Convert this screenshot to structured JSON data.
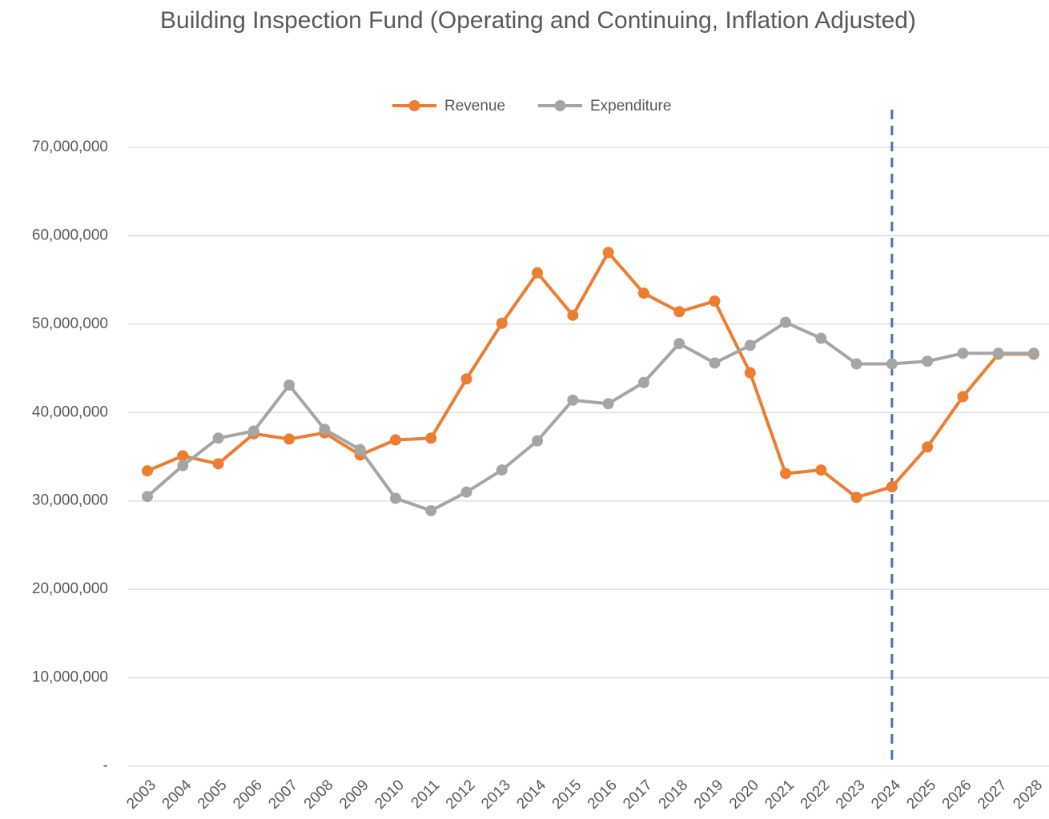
{
  "chart_data": {
    "type": "line",
    "title": "Building Inspection Fund (Operating and Continuing, Inflation Adjusted)",
    "categories": [
      "2003",
      "2004",
      "2005",
      "2006",
      "2007",
      "2008",
      "2009",
      "2010",
      "2011",
      "2012",
      "2013",
      "2014",
      "2015",
      "2016",
      "2017",
      "2018",
      "2019",
      "2020",
      "2021",
      "2022",
      "2023",
      "2024",
      "2025",
      "2026",
      "2027",
      "2028"
    ],
    "series": [
      {
        "name": "Revenue",
        "color": "#ed7d31",
        "values": [
          33400000,
          35100000,
          34200000,
          37600000,
          37000000,
          37700000,
          35200000,
          36900000,
          37100000,
          43800000,
          50100000,
          55800000,
          51000000,
          58100000,
          53500000,
          51400000,
          52600000,
          44500000,
          33100000,
          33500000,
          30400000,
          31600000,
          36100000,
          41800000,
          46600000,
          46600000
        ]
      },
      {
        "name": "Expenditure",
        "color": "#a5a5a5",
        "values": [
          30500000,
          34000000,
          37100000,
          37900000,
          43100000,
          38100000,
          35800000,
          30300000,
          28900000,
          31000000,
          33500000,
          36800000,
          41400000,
          41000000,
          43400000,
          47800000,
          45600000,
          47600000,
          50200000,
          48400000,
          45500000,
          45500000,
          45800000,
          46700000,
          46700000,
          46700000
        ]
      }
    ],
    "ylim": [
      0,
      70000000
    ],
    "yticks": [
      {
        "value": 0,
        "label": "-"
      },
      {
        "value": 10000000,
        "label": "10,000,000"
      },
      {
        "value": 20000000,
        "label": "20,000,000"
      },
      {
        "value": 30000000,
        "label": "30,000,000"
      },
      {
        "value": 40000000,
        "label": "40,000,000"
      },
      {
        "value": 50000000,
        "label": "50,000,000"
      },
      {
        "value": 60000000,
        "label": "60,000,000"
      },
      {
        "value": 70000000,
        "label": "70,000,000"
      }
    ],
    "grid": true,
    "legend": "top",
    "reference_line": {
      "x": "2024",
      "color": "#4472c4",
      "style": "dashed"
    }
  }
}
